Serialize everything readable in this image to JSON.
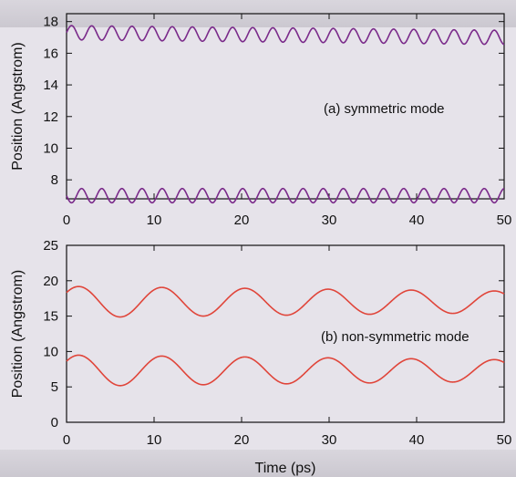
{
  "chart_data": [
    {
      "type": "line",
      "panel": "top",
      "annotation": "(a) symmetric mode",
      "ylabel": "Position (Angstrom)",
      "xlabel": "",
      "xlim": [
        0,
        50
      ],
      "ylim": [
        6.8,
        18.5
      ],
      "xticks": [
        0,
        10,
        20,
        30,
        40,
        50
      ],
      "yticks": [
        8,
        10,
        12,
        14,
        16,
        18
      ],
      "color": "#7a2a8a",
      "series": [
        {
          "center": 17.3,
          "amplitude": 0.45,
          "period_ps": 2.3,
          "phase": 0,
          "drift_per_ps": -0.006
        },
        {
          "center": 7.0,
          "amplitude": 0.45,
          "period_ps": 2.3,
          "phase": 3.14159,
          "drift_per_ps": 0.0
        }
      ]
    },
    {
      "type": "line",
      "panel": "bottom",
      "annotation": "(b) non-symmetric mode",
      "ylabel": "Position (Angstrom)",
      "xlabel": "Time (ps)",
      "xlim": [
        0,
        50
      ],
      "ylim": [
        0,
        25
      ],
      "xticks": [
        0,
        10,
        20,
        30,
        40,
        50
      ],
      "yticks": [
        0,
        5,
        10,
        15,
        20,
        25
      ],
      "color": "#e0453a",
      "series": [
        {
          "center": 17.0,
          "amplitude": 2.2,
          "period_ps": 9.5,
          "phase": 0.65,
          "amp_decay": 0.3,
          "drift_per_ps": 0.0
        },
        {
          "center": 7.3,
          "amplitude": 2.2,
          "period_ps": 9.5,
          "phase": 0.65,
          "amp_decay": 0.3,
          "drift_per_ps": 0.0
        }
      ]
    }
  ]
}
